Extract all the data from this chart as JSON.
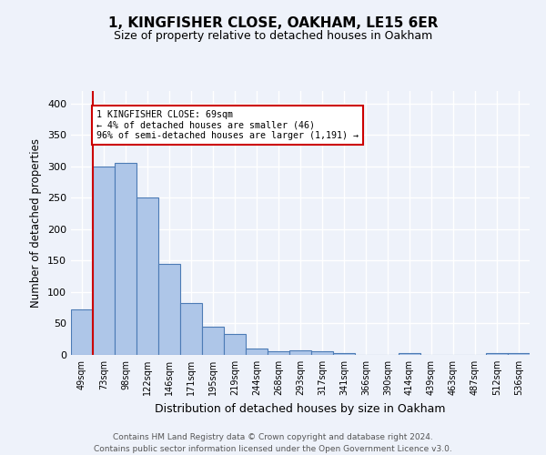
{
  "title1": "1, KINGFISHER CLOSE, OAKHAM, LE15 6ER",
  "title2": "Size of property relative to detached houses in Oakham",
  "xlabel": "Distribution of detached houses by size in Oakham",
  "ylabel": "Number of detached properties",
  "footer": "Contains HM Land Registry data © Crown copyright and database right 2024.\nContains public sector information licensed under the Open Government Licence v3.0.",
  "bar_labels": [
    "49sqm",
    "73sqm",
    "98sqm",
    "122sqm",
    "146sqm",
    "171sqm",
    "195sqm",
    "219sqm",
    "244sqm",
    "268sqm",
    "293sqm",
    "317sqm",
    "341sqm",
    "366sqm",
    "390sqm",
    "414sqm",
    "439sqm",
    "463sqm",
    "487sqm",
    "512sqm",
    "536sqm"
  ],
  "bar_values": [
    72,
    300,
    305,
    250,
    145,
    83,
    45,
    34,
    10,
    6,
    7,
    6,
    3,
    0,
    0,
    3,
    0,
    0,
    0,
    3,
    3
  ],
  "bar_color": "#aec6e8",
  "bar_edge_color": "#4c7bb5",
  "bg_color": "#eef2fa",
  "grid_color": "#ffffff",
  "annotation_text": "1 KINGFISHER CLOSE: 69sqm\n← 4% of detached houses are smaller (46)\n96% of semi-detached houses are larger (1,191) →",
  "annotation_box_color": "#ffffff",
  "annotation_box_edge": "#cc0000",
  "vline_color": "#cc0000",
  "ylim": [
    0,
    420
  ],
  "yticks": [
    0,
    50,
    100,
    150,
    200,
    250,
    300,
    350,
    400
  ]
}
